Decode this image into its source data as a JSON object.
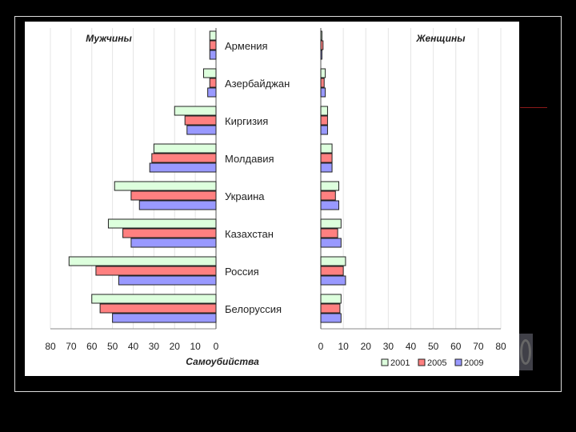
{
  "chart_data": {
    "type": "bar",
    "orientation": "horizontal",
    "categories": [
      "Армения",
      "Азербайджан",
      "Киргизия",
      "Молдавия",
      "Украина",
      "Казахстан",
      "Россия",
      "Белоруссия"
    ],
    "panels": [
      {
        "title": "Мужчины",
        "axis_direction": "reversed",
        "xlim": [
          0,
          80
        ],
        "ticks": [
          80,
          70,
          60,
          50,
          40,
          30,
          20,
          10,
          0
        ],
        "series": [
          {
            "name": "2001",
            "values": [
              3,
              6,
              20,
              30,
              49,
              52,
              71,
              60
            ]
          },
          {
            "name": "2005",
            "values": [
              3,
              3,
              15,
              31,
              41,
              45,
              58,
              56
            ]
          },
          {
            "name": "2009",
            "values": [
              3,
              4,
              14,
              32,
              37,
              41,
              47,
              50
            ]
          }
        ]
      },
      {
        "title": "Женщины",
        "axis_direction": "normal",
        "xlim": [
          0,
          80
        ],
        "ticks": [
          0,
          10,
          20,
          30,
          40,
          50,
          60,
          70,
          80
        ],
        "series": [
          {
            "name": "2001",
            "values": [
              0.5,
              2,
              3,
              5,
              8,
              9,
              11,
              9
            ]
          },
          {
            "name": "2005",
            "values": [
              1,
              1.5,
              3,
              5,
              6.5,
              7.5,
              10,
              8.5
            ]
          },
          {
            "name": "2009",
            "values": [
              0.5,
              2,
              3,
              5,
              8,
              9,
              11,
              9
            ]
          }
        ]
      }
    ],
    "xlabel": "Самоубийства",
    "legend": {
      "placement": "bottom-right",
      "entries": [
        "2001",
        "2005",
        "2009"
      ]
    },
    "colors": {
      "2001": "#ddffdd",
      "2005": "#ff8080",
      "2009": "#9999ff"
    },
    "grid": true
  }
}
